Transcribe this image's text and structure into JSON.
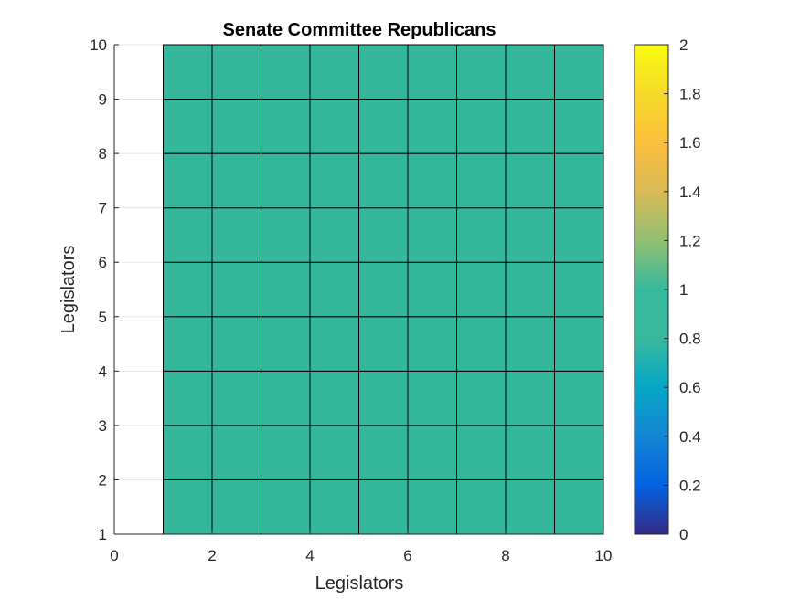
{
  "chart_data": {
    "type": "heatmap",
    "title": "Senate Committee Republicans",
    "xlabel": "Legislators",
    "ylabel": "Legislators",
    "xlim": [
      0,
      10
    ],
    "ylim": [
      1,
      10
    ],
    "xticks": [
      0,
      2,
      4,
      6,
      8,
      10
    ],
    "yticks": [
      1,
      2,
      3,
      4,
      5,
      6,
      7,
      8,
      9,
      10
    ],
    "x_edges": [
      1,
      2,
      3,
      4,
      5,
      6,
      7,
      8,
      9,
      10
    ],
    "y_edges": [
      1,
      2,
      3,
      4,
      5,
      6,
      7,
      8,
      9,
      10
    ],
    "values": [
      [
        1,
        1,
        1,
        1,
        1,
        1,
        1,
        1,
        1
      ],
      [
        1,
        1,
        1,
        1,
        1,
        1,
        1,
        1,
        1
      ],
      [
        1,
        1,
        1,
        1,
        1,
        1,
        1,
        1,
        1
      ],
      [
        1,
        1,
        1,
        1,
        1,
        1,
        1,
        1,
        1
      ],
      [
        1,
        1,
        1,
        1,
        1,
        1,
        1,
        1,
        1
      ],
      [
        1,
        1,
        1,
        1,
        1,
        1,
        1,
        1,
        1
      ],
      [
        1,
        1,
        1,
        1,
        1,
        1,
        1,
        1,
        1
      ],
      [
        1,
        1,
        1,
        1,
        1,
        1,
        1,
        1,
        1
      ],
      [
        1,
        1,
        1,
        1,
        1,
        1,
        1,
        1,
        1
      ]
    ],
    "colorbar": {
      "limits": [
        0,
        2
      ],
      "ticks": [
        "0",
        "0.2",
        "0.4",
        "0.6",
        "0.8",
        "1",
        "1.2",
        "1.4",
        "1.6",
        "1.8",
        "2"
      ],
      "colormap": "parula"
    },
    "grid": true,
    "colors": {
      "cell": "#35b79b",
      "cell_edge": "#000000",
      "grid": "#e6e6e6",
      "axis": "#262626"
    }
  }
}
